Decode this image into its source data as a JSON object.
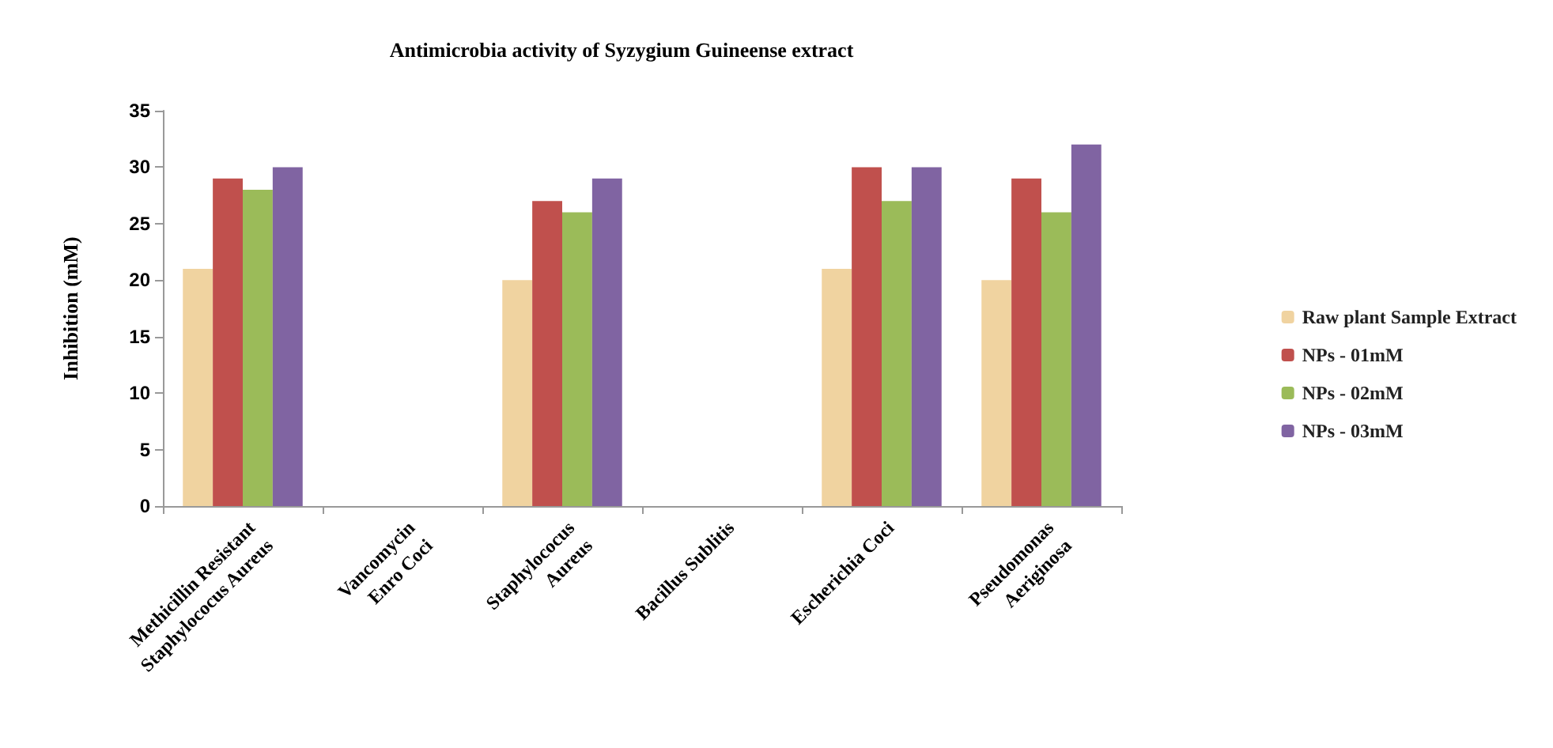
{
  "chart_data": {
    "type": "bar",
    "title": "Antimicrobia activity of Syzygium Guineense extract",
    "ylabel": "Inhibition (mM)",
    "categories": [
      "Methicillin Resistant\nStaphylococus Aureus",
      "Vancomycin\nEnro Coci",
      "Staphylococus\nAureus",
      "Bacillus Sublitis",
      "Escherichia Coci",
      "Pseudomonas\nAeriginosa"
    ],
    "series": [
      {
        "name": "Raw plant Sample Extract",
        "color": "#f0d3a0",
        "values": [
          21,
          null,
          20,
          null,
          21,
          20
        ]
      },
      {
        "name": "NPs - 01mM",
        "color": "#c0504d",
        "values": [
          29,
          null,
          27,
          null,
          30,
          29
        ]
      },
      {
        "name": "NPs - 02mM",
        "color": "#9bbb59",
        "values": [
          28,
          null,
          26,
          null,
          27,
          26
        ]
      },
      {
        "name": "NPs - 03mM",
        "color": "#8064a2",
        "values": [
          30,
          null,
          29,
          null,
          30,
          32
        ]
      }
    ],
    "ylim": [
      0,
      35
    ],
    "yticks": [
      0,
      5,
      10,
      15,
      20,
      25,
      30,
      35
    ],
    "grid": false,
    "legend": "right"
  }
}
